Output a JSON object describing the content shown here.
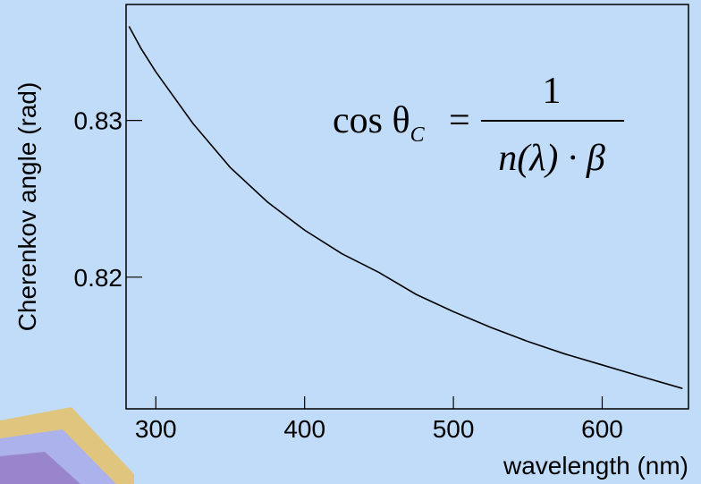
{
  "chart_data": {
    "type": "line",
    "x_label": "wavelength (nm)",
    "y_label": "Cherenkov angle (rad)",
    "annotation": {
      "lhs": "cos θ",
      "subscript": "C",
      "equals": "=",
      "numerator": "1",
      "denominator": "n(λ) · β"
    },
    "x": [
      282,
      290,
      300,
      325,
      350,
      375,
      400,
      425,
      450,
      475,
      500,
      525,
      550,
      575,
      600,
      625,
      654
    ],
    "series": [
      {
        "color": "#000000",
        "values": [
          0.836,
          0.8346,
          0.8331,
          0.8298,
          0.827,
          0.8248,
          0.823,
          0.8215,
          0.8203,
          0.8189,
          0.8178,
          0.8168,
          0.8159,
          0.8151,
          0.8144,
          0.8137,
          0.8129
        ]
      }
    ],
    "xlim": [
      280,
      658
    ],
    "xticks": [
      300,
      400,
      500,
      600
    ],
    "ylim": [
      0.8116,
      0.8374
    ],
    "yticks": [
      0.82,
      0.83
    ]
  }
}
